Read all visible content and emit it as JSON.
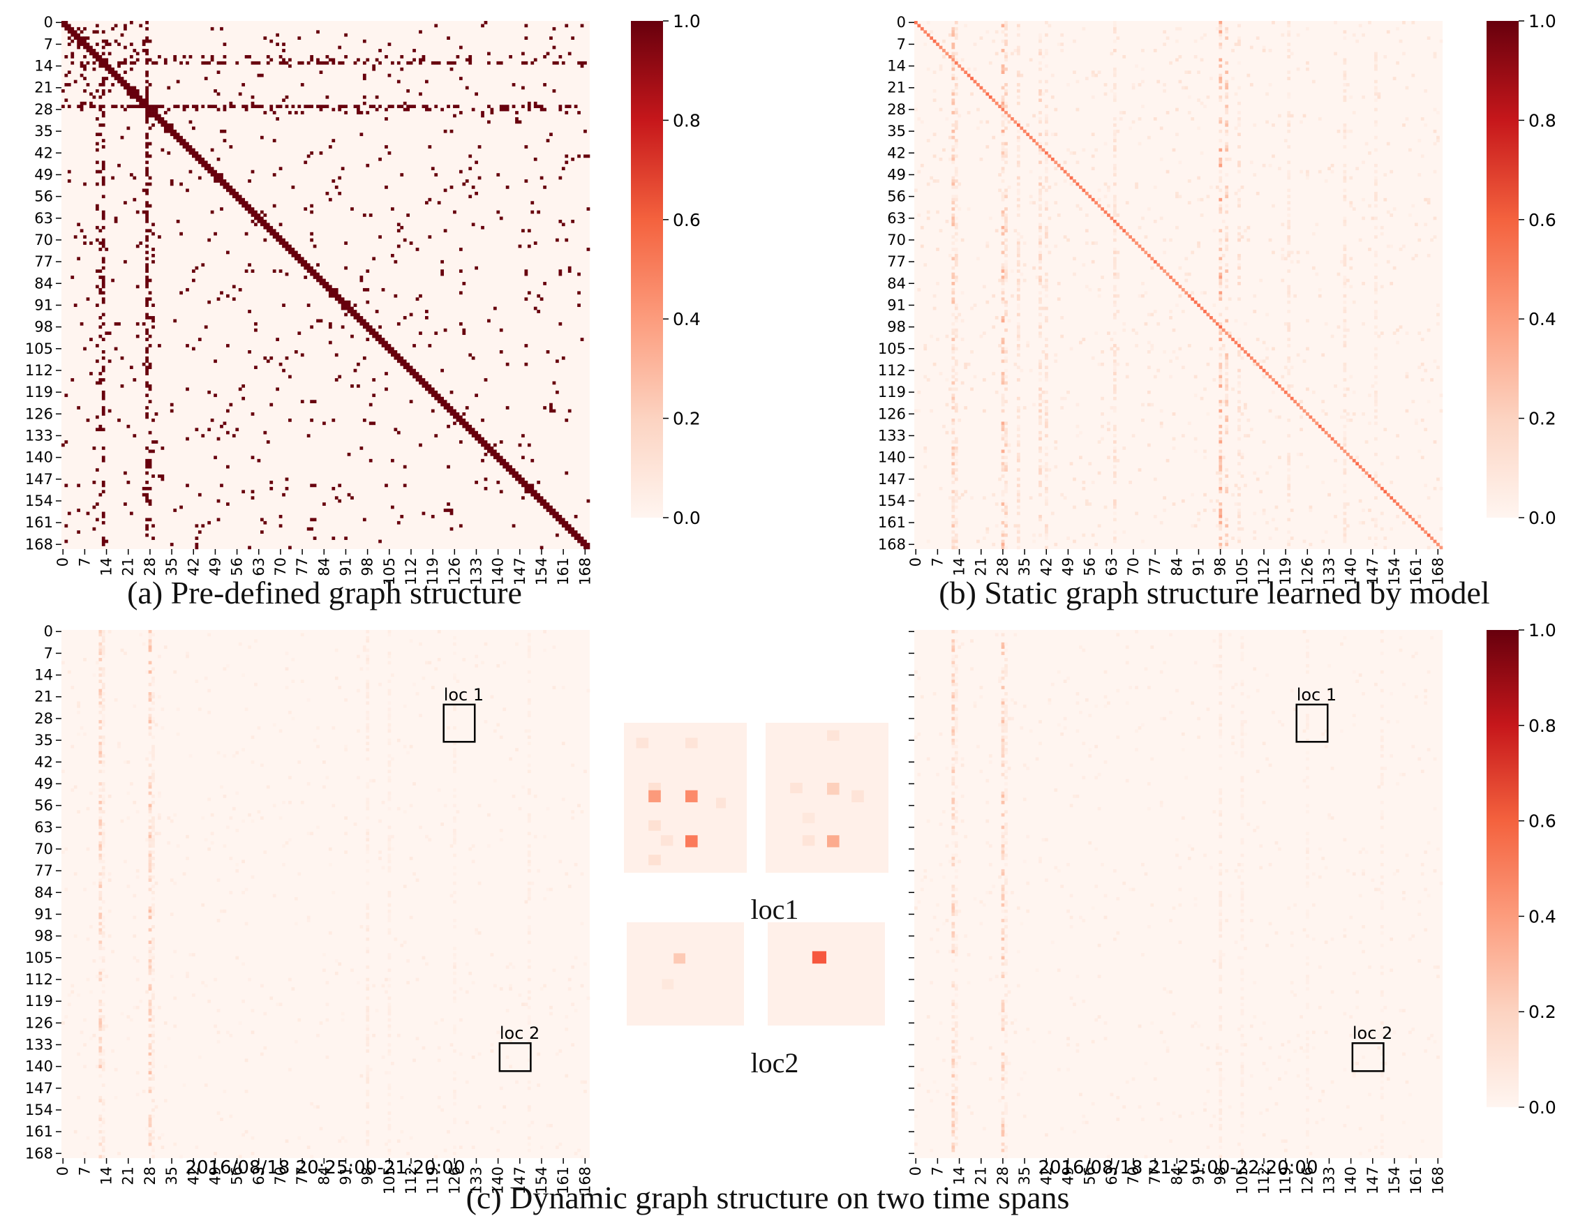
{
  "panels": {
    "a": {
      "caption": "(a) Pre-defined graph structure"
    },
    "b": {
      "caption": "(b) Static graph structure learned by model"
    },
    "c": {
      "caption": "(c) Dynamic graph structure on two time spans",
      "left_time": "2016/08/18 20:25:00-21:20:00",
      "right_time": "2016/08/18 21:25:00-22:20:00",
      "box1_label": "loc 1",
      "box2_label": "loc 2",
      "zoom1_label": "loc1",
      "zoom2_label": "loc2"
    }
  },
  "colors": {
    "low": "#fff5f0",
    "mid": "#f4775c",
    "high": "#67000d",
    "box": "#000000"
  },
  "chart_data": [
    {
      "type": "heatmap",
      "title": "",
      "description_of_pattern": "binary adjacency matrix, 170x170",
      "x_ticks": [
        "0",
        "7",
        "14",
        "21",
        "28",
        "35",
        "42",
        "49",
        "56",
        "63",
        "70",
        "77",
        "84",
        "91",
        "98",
        "105",
        "112",
        "119",
        "126",
        "133",
        "140",
        "147",
        "154",
        "161",
        "168"
      ],
      "y_ticks": [
        "0",
        "7",
        "14",
        "21",
        "28",
        "35",
        "42",
        "49",
        "56",
        "63",
        "70",
        "77",
        "84",
        "91",
        "98",
        "105",
        "112",
        "119",
        "126",
        "133",
        "140",
        "147",
        "154",
        "161",
        "168"
      ],
      "size": 170,
      "colorbar": {
        "range": [
          0,
          1
        ],
        "ticks": [
          "0.0",
          "0.2",
          "0.4",
          "0.6",
          "0.8",
          "1.0"
        ]
      },
      "values": "binary: 1 on diagonal and scattered off-diagonal edges, 0 elsewhere"
    },
    {
      "type": "heatmap",
      "size": 170,
      "x_ticks": [
        "0",
        "7",
        "14",
        "21",
        "28",
        "35",
        "42",
        "49",
        "56",
        "63",
        "70",
        "77",
        "84",
        "91",
        "98",
        "105",
        "112",
        "119",
        "126",
        "133",
        "140",
        "147",
        "154",
        "161",
        "168"
      ],
      "y_ticks": [
        "0",
        "7",
        "14",
        "21",
        "28",
        "35",
        "42",
        "49",
        "56",
        "63",
        "70",
        "77",
        "84",
        "91",
        "98",
        "105",
        "112",
        "119",
        "126",
        "133",
        "140",
        "147",
        "154",
        "161",
        "168"
      ],
      "colorbar": {
        "range": [
          0,
          1
        ],
        "ticks": [
          "0.0",
          "0.2",
          "0.4",
          "0.6",
          "0.8",
          "1.0"
        ]
      },
      "values": "continuous learned weights 0-0.5, stronger diagonal and column bands"
    },
    {
      "type": "heatmap",
      "size": 170,
      "x_ticks": [
        "0",
        "7",
        "14",
        "21",
        "28",
        "35",
        "42",
        "49",
        "56",
        "63",
        "70",
        "77",
        "84",
        "91",
        "98",
        "105",
        "112",
        "119",
        "126",
        "133",
        "140",
        "147",
        "154",
        "161",
        "168"
      ],
      "y_ticks": [
        "0",
        "7",
        "14",
        "21",
        "28",
        "35",
        "42",
        "49",
        "56",
        "63",
        "70",
        "77",
        "84",
        "91",
        "98",
        "105",
        "112",
        "119",
        "126",
        "133",
        "140",
        "147",
        "154",
        "161",
        "168"
      ],
      "xlabel": "2016/08/18 20:25:00-21:20:00",
      "values": "weak continuous weights 0-0.2 with column bands near 12 and 28"
    },
    {
      "type": "heatmap",
      "size": 170,
      "x_ticks": [
        "0",
        "7",
        "14",
        "21",
        "28",
        "35",
        "42",
        "49",
        "56",
        "63",
        "70",
        "77",
        "84",
        "91",
        "98",
        "105",
        "112",
        "119",
        "126",
        "133",
        "140",
        "147",
        "154",
        "161",
        "168"
      ],
      "xlabel": "2016/08/18 21:25:00-22:20:00",
      "colorbar": {
        "range": [
          0,
          1
        ],
        "ticks": [
          "0.0",
          "0.2",
          "0.4",
          "0.6",
          "0.8",
          "1.0"
        ]
      },
      "values": "weak continuous weights 0-0.2 with column bands near 12 and 28"
    }
  ]
}
